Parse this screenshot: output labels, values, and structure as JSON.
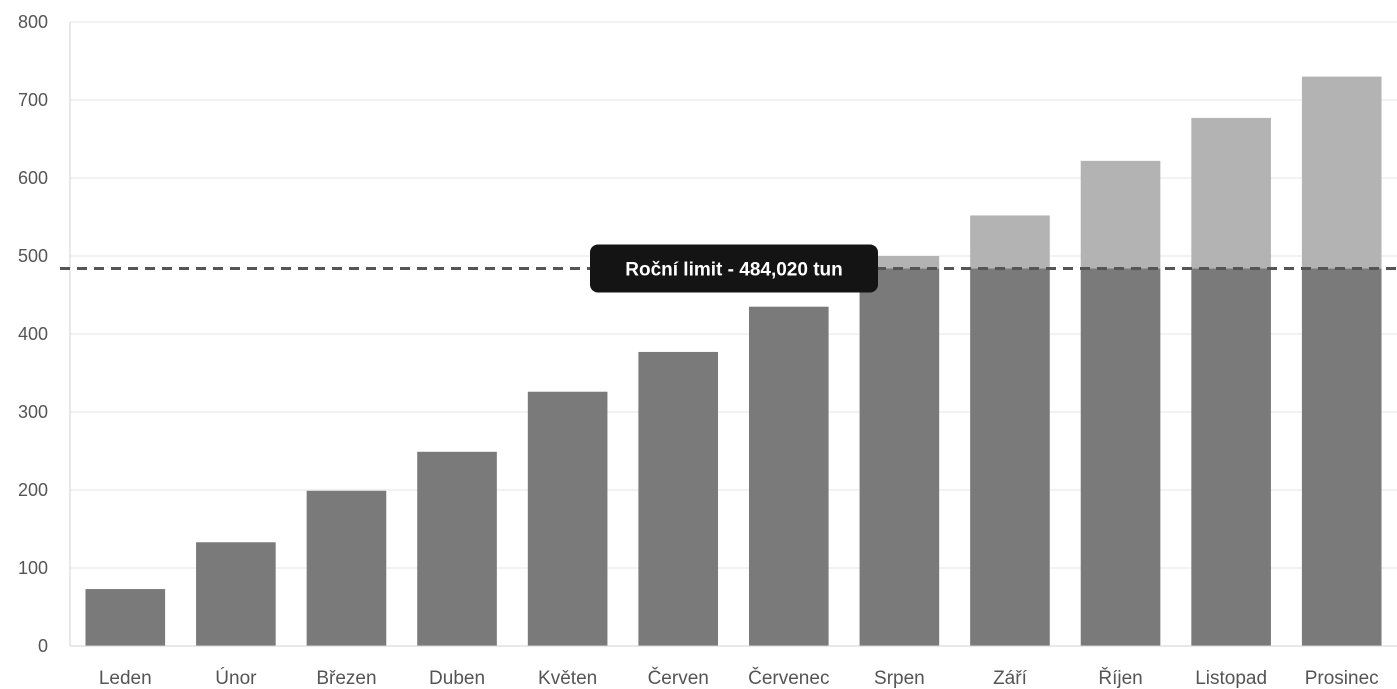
{
  "chart_data": {
    "type": "bar",
    "stacked": true,
    "categories": [
      "Leden",
      "Únor",
      "Březen",
      "Duben",
      "Květen",
      "Červen",
      "Červenec",
      "Srpen",
      "Září",
      "Říjen",
      "Listopad",
      "Prosinec"
    ],
    "totals": [
      73,
      133,
      199,
      249,
      326,
      377,
      435,
      500,
      552,
      622,
      677,
      730
    ],
    "series": [
      {
        "values": [
          73,
          133,
          199,
          249,
          326,
          377,
          435,
          484.02,
          484.02,
          484.02,
          484.02,
          484.02
        ],
        "color": "#7a7a7a"
      },
      {
        "values": [
          0,
          0,
          0,
          0,
          0,
          0,
          0,
          15.98,
          67.98,
          137.98,
          192.98,
          245.98
        ],
        "color": "#b3b3b3"
      }
    ],
    "ylim": [
      0,
      800
    ],
    "yticks": [
      0,
      100,
      200,
      300,
      400,
      500,
      600,
      700,
      800
    ],
    "grid": true,
    "title": "",
    "xlabel": "",
    "ylabel": "",
    "annotation": {
      "label": "Roční limit - 484,020 tun",
      "value": 484.02,
      "line_color": "#555555",
      "box_color": "#141414",
      "text_color": "#ffffff"
    }
  }
}
